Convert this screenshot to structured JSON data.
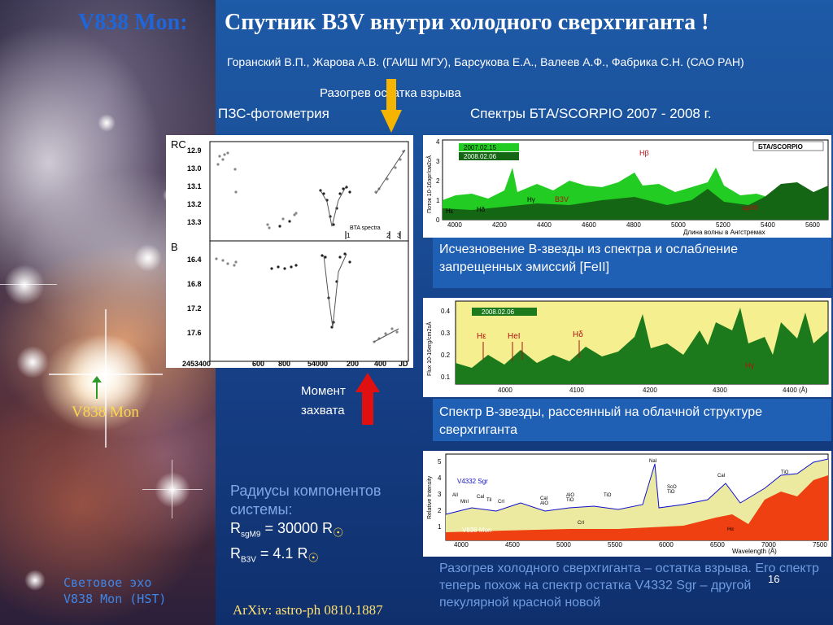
{
  "title": {
    "object": "V838 Mon:",
    "main": "Спутник B3V внутри холодного сверхгиганта !"
  },
  "authors": "Горанский В.П., Жарова А.В. (ГАИШ МГУ), Барсукова Е.А., Валеев А.Ф., Фабрика С.Н. (САО РАН)",
  "labels": {
    "heating": "Разогрев остатка взрыва",
    "ccd": "ПЗС-фотометрия",
    "spectra": "Спектры  БТА/SCORPIO 2007 - 2008 г.",
    "capture_line1": "Момент",
    "capture_line2": "захвата",
    "v838": "V838 Mon"
  },
  "captions": {
    "chart1": "Исчезновение B-звезды из спектра и ослабление запрещенных эмиссий [FeII]",
    "chart2": "Спектр B-звезды, рассеянный на облачной структуре сверхгиганта",
    "final": "Разогрев холодного сверхгиганта – остатка взрыва. Его спектр теперь похож  на  спектр остатка V4332 Sgr – другой  пекулярной  красной  новой"
  },
  "radii": {
    "heading_line1": "Радиусы компонентов",
    "heading_line2": "системы:",
    "sg_prefix": "R",
    "sg_sub": "sgM9",
    "sg_value": " =  30000 R",
    "b3v_prefix": "R",
    "b3v_sub": "B3V",
    "b3v_value": " =  4.1 R",
    "sun_symbol": "☉"
  },
  "echo": {
    "line1": "Световое эхо",
    "line2": "V838 Mon (HST)"
  },
  "arxiv": "ArXiv: astro-ph 0810.1887",
  "page_number": "16",
  "colors": {
    "title_object": "#1f66d9",
    "arxiv": "#ffe070",
    "v838_label": "#ffd84a",
    "arrow_yellow": "#f5b400",
    "arrow_red": "#e01010",
    "arrow_green": "#2a9a2a"
  },
  "chart_data": [
    {
      "type": "scatter",
      "panel": "light-curve",
      "top_band_label": "RC",
      "bottom_band_label": "B",
      "top_ticks": [
        "12.9",
        "13.0",
        "13.1",
        "13.2",
        "13.3"
      ],
      "bottom_ticks": [
        "16.4",
        "16.8",
        "17.2",
        "17.6"
      ],
      "x_ticks": [
        "2453400",
        "600",
        "800",
        "54000",
        "200",
        "400",
        "JD"
      ],
      "annotation": "BTA spectra",
      "spectra_marks": [
        "1",
        "2",
        "3"
      ]
    },
    {
      "type": "area",
      "panel": "spectra-2007-2008",
      "legend": [
        "2007.02.15",
        "2008.02.06"
      ],
      "badge": "БТА/SCORPIO",
      "ylabel": "Поток 10-16эрг/см2сÅ",
      "xlabel": "Длина волны в Ангстремах",
      "x_ticks": [
        "4000",
        "4200",
        "4400",
        "4600",
        "4800",
        "5000",
        "5200",
        "5400",
        "5600"
      ],
      "y_ticks": [
        "0",
        "1",
        "2",
        "3",
        "4"
      ],
      "line_labels": [
        "Hβ",
        "Hγ",
        "B3V",
        "Hδ",
        "Hε",
        "sgM9"
      ]
    },
    {
      "type": "area",
      "panel": "spectrum-2008-02-06",
      "legend": [
        "2008.02.06"
      ],
      "ylabel": "Flux 10-16erg/cm2sÅ",
      "x_ticks": [
        "4000",
        "4100",
        "4200",
        "4300",
        "4400 (Å)"
      ],
      "y_ticks": [
        "0.1",
        "0.2",
        "0.3",
        "0.4"
      ],
      "line_labels": [
        "Hε",
        "HeI",
        "Hδ",
        "Hγ"
      ]
    },
    {
      "type": "area",
      "panel": "comparison-v4332-sgr",
      "series": [
        {
          "name": "V4332 Sgr"
        },
        {
          "name": "V838 Mon"
        }
      ],
      "ylabel": "Relative Intensity",
      "xlabel": "Wavelength (Å)",
      "x_ticks": [
        "4000",
        "4500",
        "5000",
        "5500",
        "6000",
        "6500",
        "7000",
        "7500"
      ],
      "y_ticks": [
        "1",
        "2",
        "3",
        "4",
        "5"
      ],
      "line_labels": [
        "AlI",
        "MnI",
        "CaI",
        "TiI",
        "CrI",
        "CaI",
        "AlO",
        "AlO",
        "TiO",
        "TiO",
        "CrI",
        "ScO",
        "TiO",
        "NaI",
        "CaI",
        "TiO",
        "Hα"
      ]
    }
  ]
}
